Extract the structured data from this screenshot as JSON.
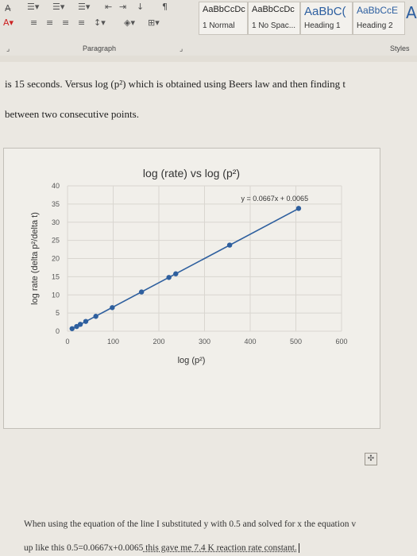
{
  "ribbon": {
    "styles": [
      {
        "sample": "AaBbCcDc",
        "label": "1 Normal"
      },
      {
        "sample": "AaBbCcDc",
        "label": "1 No Spac..."
      },
      {
        "sample": "AaBbC(",
        "label": "Heading 1"
      },
      {
        "sample": "AaBbCcE",
        "label": "Heading 2"
      }
    ],
    "group_paragraph": "Paragraph",
    "group_styles": "Styles"
  },
  "document": {
    "line1": "is 15 seconds. Versus log (p²) which is obtained using Beers law and then finding t",
    "line2": "between two consecutive points.",
    "bottom_line1": "When using the equation of the line I substituted y with 0.5 and solved for x the equation v",
    "bottom_line2_a": "up like this 0.5=0.0667x+0.0065",
    "bottom_line2_b": " this gave me 7.4 K reaction rate constant."
  },
  "chart_data": {
    "type": "scatter",
    "title": "log (rate) vs log (p²)",
    "xlabel": "log (p²)",
    "ylabel": "log rate (delta p²/delta t)",
    "xlim": [
      0,
      600
    ],
    "ylim": [
      0,
      40
    ],
    "xticks": [
      0,
      100,
      200,
      300,
      400,
      500,
      600
    ],
    "yticks": [
      0,
      5,
      10,
      15,
      20,
      25,
      30,
      35,
      40
    ],
    "grid": true,
    "trendline_label": "y = 0.0667x + 0.0065",
    "trendline": {
      "slope": 0.0667,
      "intercept": 0.0065
    },
    "points": [
      {
        "x": 10,
        "y": 0.7
      },
      {
        "x": 20,
        "y": 1.3
      },
      {
        "x": 28,
        "y": 1.9
      },
      {
        "x": 40,
        "y": 2.7
      },
      {
        "x": 62,
        "y": 4.1
      },
      {
        "x": 98,
        "y": 6.5
      },
      {
        "x": 162,
        "y": 10.8
      },
      {
        "x": 222,
        "y": 14.8
      },
      {
        "x": 237,
        "y": 15.8
      },
      {
        "x": 355,
        "y": 23.7
      },
      {
        "x": 506,
        "y": 33.8
      }
    ],
    "colors": {
      "series": "#2e5f9e",
      "grid": "#d9d6d0"
    }
  }
}
